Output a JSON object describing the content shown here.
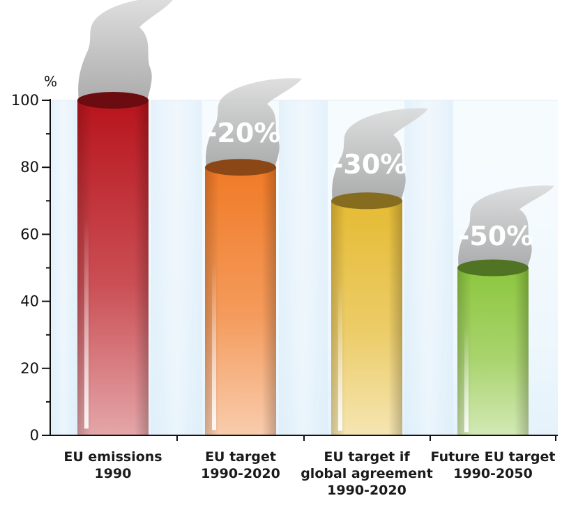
{
  "chart_data": {
    "type": "bar",
    "title": "",
    "xlabel": "",
    "ylabel": "%",
    "ylim": [
      0,
      100
    ],
    "yticks": [
      0,
      20,
      40,
      60,
      80,
      100
    ],
    "categories": [
      [
        "EU emissions",
        "1990"
      ],
      [
        "EU target",
        "1990-2020"
      ],
      [
        "EU target if",
        "global agreement",
        "1990-2020"
      ],
      [
        "Future EU target",
        "1990-2050"
      ]
    ],
    "values": [
      100,
      80,
      70,
      50
    ],
    "data_labels": [
      "",
      "-20%",
      "-30%",
      "-50%"
    ],
    "colors": [
      "#b8141c",
      "#f07a26",
      "#e5bb34",
      "#8cc63e"
    ],
    "grid": false,
    "legend": "none"
  }
}
